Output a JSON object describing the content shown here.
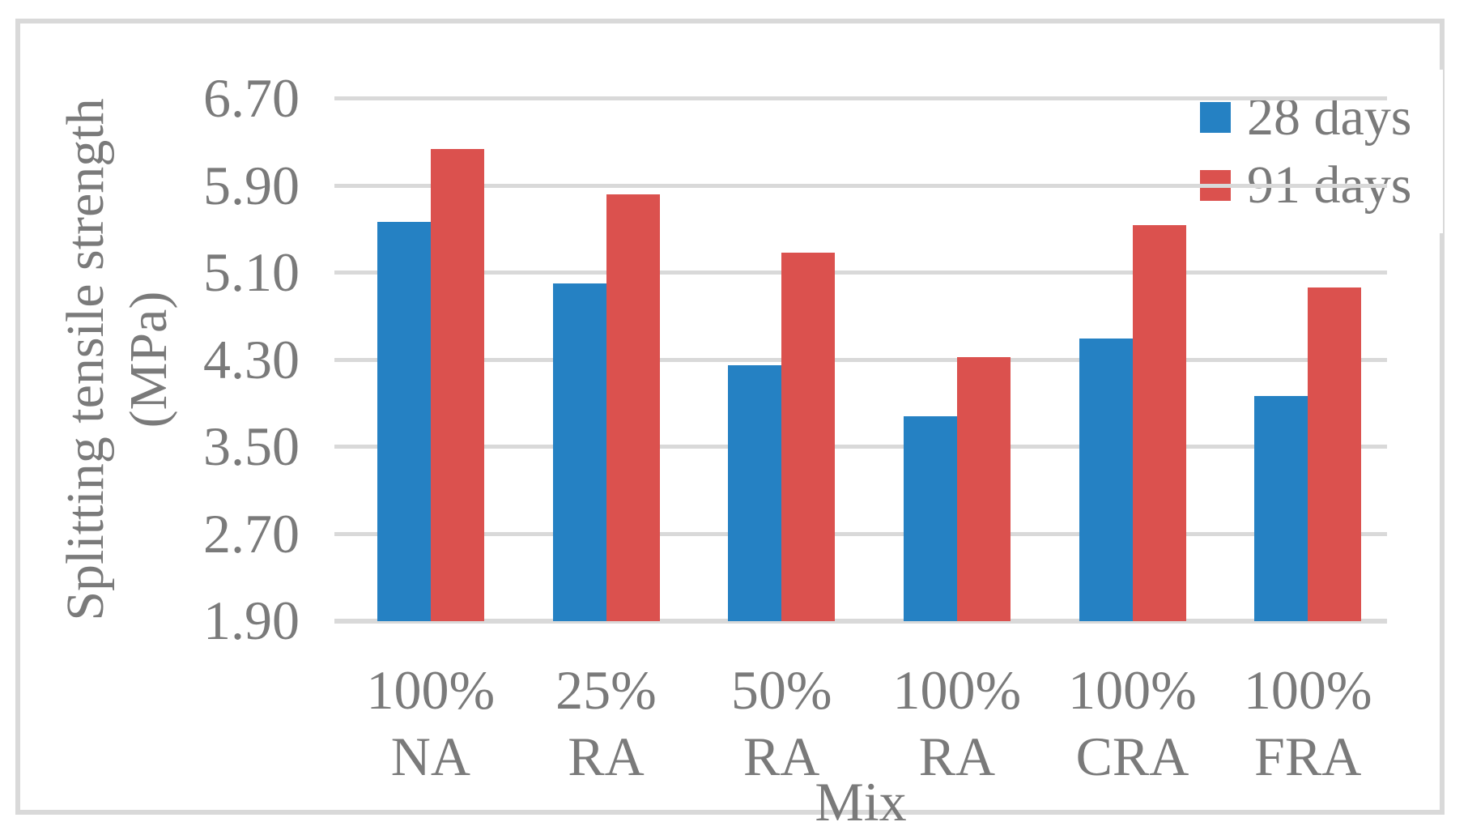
{
  "figure": {
    "background": "#ffffff",
    "frame_color": "#d9d9d9",
    "text_color": "#7a7a7a"
  },
  "chart_data": {
    "type": "bar",
    "title": "",
    "xlabel": "Mix",
    "ylabel": "Splitting tensile strength (MPa)",
    "ylabel_lines": [
      "Splitting tensile strength",
      "(MPa)"
    ],
    "categories": [
      "100% NA",
      "25% RA",
      "50% RA",
      "100% RA",
      "100% CRA",
      "100% FRA"
    ],
    "category_label_lines": [
      [
        "100%",
        "NA"
      ],
      [
        "25%",
        "RA"
      ],
      [
        "50%",
        "RA"
      ],
      [
        "100%",
        "RA"
      ],
      [
        "100%",
        "CRA"
      ],
      [
        "100%",
        "FRA"
      ]
    ],
    "series": [
      {
        "name": "28 days",
        "color": "#2581c3",
        "values": [
          5.57,
          5.0,
          4.25,
          3.78,
          4.5,
          3.97
        ]
      },
      {
        "name": "91 days",
        "color": "#db514e",
        "values": [
          6.24,
          5.82,
          5.29,
          4.33,
          5.54,
          4.97
        ]
      }
    ],
    "ylim": [
      1.9,
      6.7
    ],
    "ytick_step": 0.8,
    "yticks": [
      "6.70",
      "5.90",
      "5.10",
      "4.30",
      "3.50",
      "2.70",
      "1.90"
    ],
    "grid": "horizontal-only",
    "gridline_color": "#d9d9d9",
    "legend_position": "top-right",
    "legend_labels": [
      "28 days",
      "91 days"
    ]
  }
}
